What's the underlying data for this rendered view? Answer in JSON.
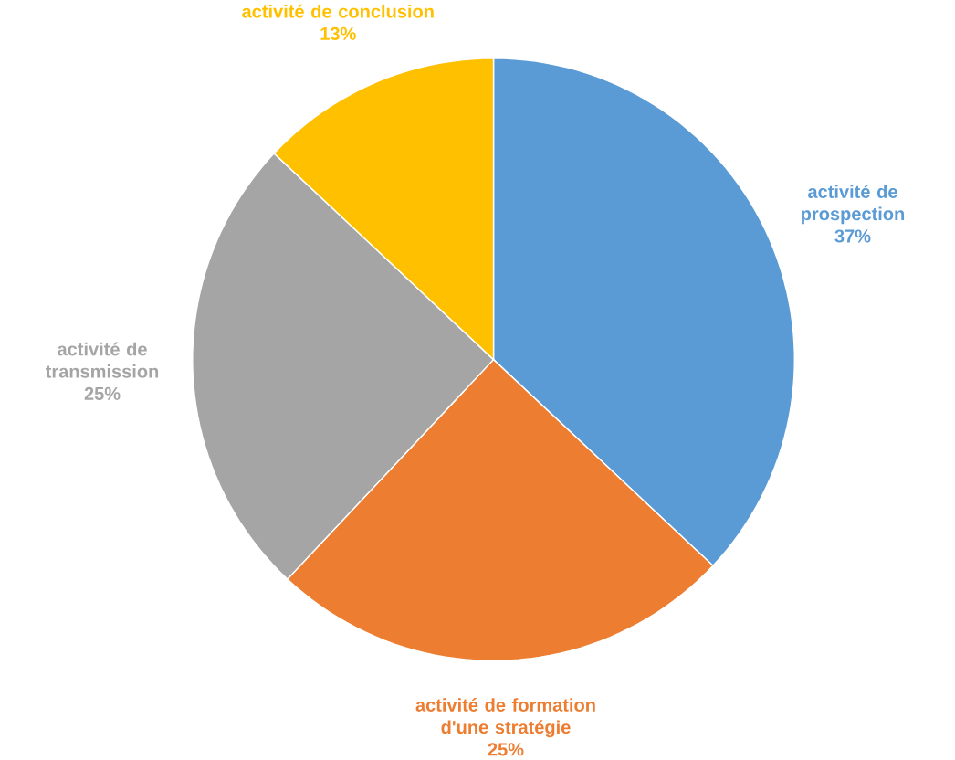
{
  "chart_data": {
    "type": "pie",
    "categories": [
      "activité de prospection",
      "activité de formation d'une stratégie",
      "activité de transmission",
      "activité de conclusion"
    ],
    "values": [
      37,
      25,
      25,
      13
    ],
    "value_labels": [
      "37%",
      "25%",
      "25%",
      "13%"
    ],
    "colors": [
      "#5b9bd5",
      "#ed7d31",
      "#a5a5a5",
      "#ffc000"
    ]
  }
}
